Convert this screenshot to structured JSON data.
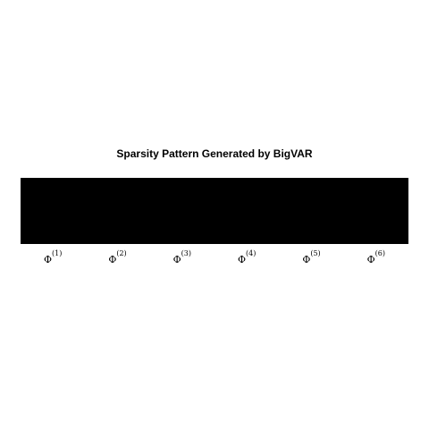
{
  "chart_data": {
    "type": "heatmap",
    "title": "Sparsity Pattern Generated by BigVAR",
    "xlabel": "",
    "ylabel": "",
    "lag_symbol": "Φ",
    "lags": [
      {
        "label": "Φ(1)",
        "lag": "1",
        "nonzero": 1
      },
      {
        "label": "Φ(2)",
        "lag": "2",
        "nonzero": 1
      },
      {
        "label": "Φ(3)",
        "lag": "3",
        "nonzero": 1
      },
      {
        "label": "Φ(4)",
        "lag": "4",
        "nonzero": 1
      },
      {
        "label": "Φ(5)",
        "lag": "5",
        "nonzero": 1
      },
      {
        "label": "Φ(6)",
        "lag": "6",
        "nonzero": 1
      }
    ],
    "colors": {
      "nonzero": "#000000",
      "zero": "#ffffff"
    },
    "grid": false,
    "legend": "none"
  }
}
